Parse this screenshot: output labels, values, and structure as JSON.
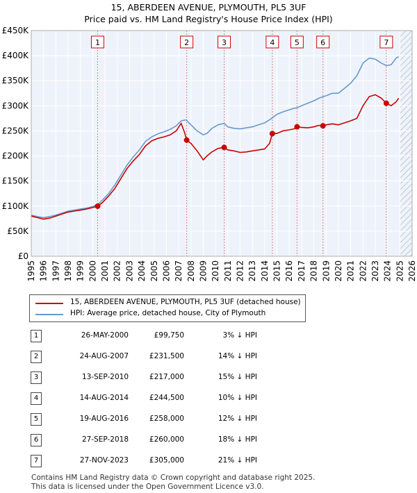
{
  "title": "15, ABERDEEN AVENUE, PLYMOUTH, PL5 3UF",
  "subtitle": "Price paid vs. HM Land Registry's House Price Index (HPI)",
  "chart_data": {
    "type": "line",
    "xlim": [
      1995,
      2026
    ],
    "ylim": [
      0,
      450000
    ],
    "x_ticks": [
      "1995",
      "1996",
      "1997",
      "1998",
      "1999",
      "2000",
      "2001",
      "2002",
      "2003",
      "2004",
      "2005",
      "2006",
      "2007",
      "2008",
      "2009",
      "2010",
      "2011",
      "2012",
      "2013",
      "2014",
      "2015",
      "2016",
      "2017",
      "2018",
      "2019",
      "2020",
      "2021",
      "2022",
      "2023",
      "2024",
      "2025",
      "2026"
    ],
    "y_ticks": [
      {
        "value": 0,
        "label": "£0"
      },
      {
        "value": 50000,
        "label": "£50K"
      },
      {
        "value": 100000,
        "label": "£100K"
      },
      {
        "value": 150000,
        "label": "£150K"
      },
      {
        "value": 200000,
        "label": "£200K"
      },
      {
        "value": 250000,
        "label": "£250K"
      },
      {
        "value": 300000,
        "label": "£300K"
      },
      {
        "value": 350000,
        "label": "£350K"
      },
      {
        "value": 400000,
        "label": "£400K"
      },
      {
        "value": 450000,
        "label": "£450K"
      }
    ],
    "hatch_from_year": 2025.0,
    "series": [
      {
        "name": "15, ABERDEEN AVENUE, PLYMOUTH, PL5 3UF (detached house)",
        "color": "#cc0000",
        "x": [
          1995.0,
          1995.5,
          1996.0,
          1996.5,
          1997.0,
          1997.5,
          1998.0,
          1998.5,
          1999.0,
          1999.5,
          2000.0,
          2000.4,
          2000.8,
          2001.3,
          2001.8,
          2002.3,
          2002.8,
          2003.3,
          2003.8,
          2004.3,
          2004.8,
          2005.3,
          2005.8,
          2006.3,
          2006.8,
          2007.2,
          2007.5,
          2007.65,
          2008.0,
          2008.5,
          2009.0,
          2009.3,
          2009.7,
          2010.2,
          2010.7,
          2011.0,
          2011.5,
          2012.0,
          2012.5,
          2013.0,
          2013.5,
          2014.0,
          2014.4,
          2014.62,
          2015.0,
          2015.5,
          2016.0,
          2016.4,
          2016.63,
          2017.0,
          2017.5,
          2018.0,
          2018.4,
          2018.74,
          2019.0,
          2019.5,
          2020.0,
          2020.5,
          2021.0,
          2021.5,
          2022.0,
          2022.5,
          2023.0,
          2023.5,
          2023.9,
          2024.3,
          2024.7,
          2024.9
        ],
        "values": [
          80000,
          77000,
          74000,
          76000,
          80000,
          84000,
          88000,
          90000,
          92000,
          94000,
          97000,
          99750,
          107000,
          120000,
          135000,
          155000,
          175000,
          190000,
          203000,
          220000,
          230000,
          235000,
          238000,
          242000,
          250000,
          265000,
          245000,
          231500,
          225000,
          210000,
          192000,
          200000,
          208000,
          215000,
          217000,
          212000,
          210000,
          207000,
          208000,
          210000,
          212000,
          214000,
          225000,
          244500,
          245000,
          250000,
          252000,
          254000,
          258000,
          257000,
          256000,
          258000,
          261000,
          260000,
          262000,
          264000,
          262000,
          266000,
          270000,
          275000,
          300000,
          318000,
          322000,
          315000,
          305000,
          300000,
          308000,
          315000
        ]
      },
      {
        "name": "HPI: Average price, detached house, City of Plymouth",
        "color": "#6699cc",
        "x": [
          1995.0,
          1995.5,
          1996.0,
          1996.5,
          1997.0,
          1997.5,
          1998.0,
          1998.5,
          1999.0,
          1999.5,
          2000.0,
          2000.4,
          2000.8,
          2001.3,
          2001.8,
          2002.3,
          2002.8,
          2003.3,
          2003.8,
          2004.3,
          2004.8,
          2005.3,
          2005.8,
          2006.3,
          2006.8,
          2007.2,
          2007.6,
          2008.0,
          2008.5,
          2009.0,
          2009.3,
          2009.7,
          2010.2,
          2010.7,
          2011.0,
          2011.5,
          2012.0,
          2012.5,
          2013.0,
          2013.5,
          2014.0,
          2014.4,
          2014.62,
          2015.0,
          2015.5,
          2016.0,
          2016.4,
          2016.63,
          2017.0,
          2017.5,
          2018.0,
          2018.4,
          2018.74,
          2019.0,
          2019.5,
          2020.0,
          2020.5,
          2021.0,
          2021.5,
          2022.0,
          2022.5,
          2023.0,
          2023.5,
          2023.9,
          2024.3,
          2024.7,
          2024.9
        ],
        "values": [
          82000,
          79000,
          77000,
          79000,
          82000,
          86000,
          90000,
          92000,
          94000,
          96000,
          99000,
          103000,
          112000,
          125000,
          142000,
          162000,
          182000,
          198000,
          212000,
          229000,
          238000,
          244000,
          248000,
          253000,
          260000,
          270000,
          272000,
          262000,
          250000,
          242000,
          245000,
          255000,
          262000,
          265000,
          258000,
          255000,
          254000,
          256000,
          258000,
          262000,
          266000,
          272000,
          276000,
          283000,
          288000,
          292000,
          295000,
          296000,
          300000,
          305000,
          310000,
          315000,
          318000,
          320000,
          325000,
          325000,
          335000,
          345000,
          360000,
          385000,
          395000,
          393000,
          385000,
          380000,
          382000,
          395000,
          398000
        ]
      }
    ],
    "sales": [
      {
        "n": "1",
        "year": 2000.4,
        "price": 99750
      },
      {
        "n": "2",
        "year": 2007.65,
        "price": 231500
      },
      {
        "n": "3",
        "year": 2010.7,
        "price": 217000
      },
      {
        "n": "4",
        "year": 2014.62,
        "price": 244500
      },
      {
        "n": "5",
        "year": 2016.63,
        "price": 258000
      },
      {
        "n": "6",
        "year": 2018.74,
        "price": 260000
      },
      {
        "n": "7",
        "year": 2023.9,
        "price": 305000
      }
    ]
  },
  "legend": [
    {
      "label": "15, ABERDEEN AVENUE, PLYMOUTH, PL5 3UF (detached house)",
      "color": "#cc0000"
    },
    {
      "label": "HPI: Average price, detached house, City of Plymouth",
      "color": "#6699cc"
    }
  ],
  "sales_table": [
    {
      "n": "1",
      "date": "26-MAY-2000",
      "price": "£99,750",
      "hpi": "3% ↓ HPI"
    },
    {
      "n": "2",
      "date": "24-AUG-2007",
      "price": "£231,500",
      "hpi": "14% ↓ HPI"
    },
    {
      "n": "3",
      "date": "13-SEP-2010",
      "price": "£217,000",
      "hpi": "15% ↓ HPI"
    },
    {
      "n": "4",
      "date": "14-AUG-2014",
      "price": "£244,500",
      "hpi": "10% ↓ HPI"
    },
    {
      "n": "5",
      "date": "19-AUG-2016",
      "price": "£258,000",
      "hpi": "12% ↓ HPI"
    },
    {
      "n": "6",
      "date": "27-SEP-2018",
      "price": "£260,000",
      "hpi": "18% ↓ HPI"
    },
    {
      "n": "7",
      "date": "27-NOV-2023",
      "price": "£305,000",
      "hpi": "21% ↓ HPI"
    }
  ],
  "footer": {
    "line1": "Contains HM Land Registry data © Crown copyright and database right 2025.",
    "line2": "This data is licensed under the Open Government Licence v3.0."
  }
}
